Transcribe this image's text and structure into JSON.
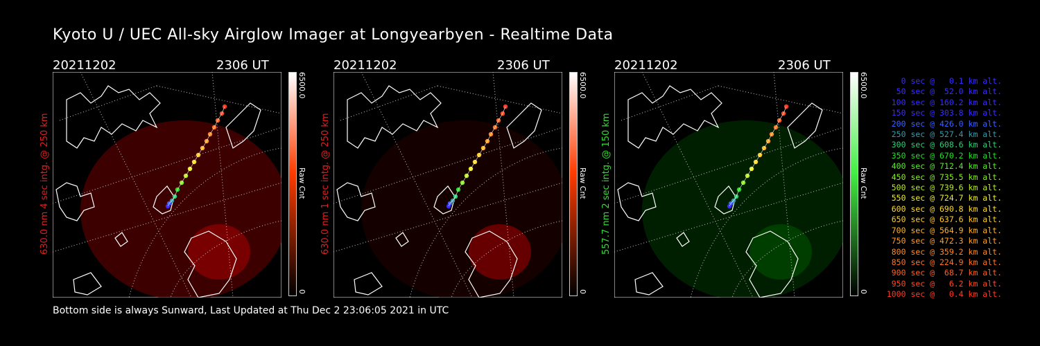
{
  "title": "Kyoto U / UEC All-sky Airglow Imager at Longyearbyen - Realtime Data",
  "footer": "Bottom side is always Sunward, Last Updated at Thu Dec  2 23:06:05 2021 in UTC",
  "panels": [
    {
      "date": "20211202",
      "time": "2306 UT",
      "side_label": "630.0 nm 4 sec intg. @ 250 km",
      "side_color": "#e02020",
      "cbar_max": "6500.0",
      "cbar_label": "Raw Cnt",
      "cbar_min": "0",
      "cbar_color": "#ff3b00"
    },
    {
      "date": "20211202",
      "time": "2306 UT",
      "side_label": "630.0 nm 1 sec intg. @ 250 km",
      "side_color": "#e02020",
      "cbar_max": "6500.0",
      "cbar_label": "Raw Cnt",
      "cbar_min": "0",
      "cbar_color": "#ff3b00"
    },
    {
      "date": "20211202",
      "time": "2306 UT",
      "side_label": "557.7 nm 2 sec intg. @ 150 km",
      "side_color": "#33dd33",
      "cbar_max": "6500.0",
      "cbar_label": "Raw Cnt",
      "cbar_min": "0",
      "cbar_color": "#44ee44"
    }
  ],
  "legend": [
    {
      "text": "0 sec @   0.1 km alt.",
      "color": "#3a2cff"
    },
    {
      "text": "50 sec @  52.0 km alt.",
      "color": "#3a2cff"
    },
    {
      "text": "100 sec @ 160.2 km alt.",
      "color": "#3a2cff"
    },
    {
      "text": "150 sec @ 303.8 km alt.",
      "color": "#3a2cff"
    },
    {
      "text": "200 sec @ 426.0 km alt.",
      "color": "#3a60ff"
    },
    {
      "text": "250 sec @ 527.4 km alt.",
      "color": "#3a9aa8"
    },
    {
      "text": "300 sec @ 608.6 km alt.",
      "color": "#2bd07a"
    },
    {
      "text": "350 sec @ 670.2 km alt.",
      "color": "#22e022"
    },
    {
      "text": "400 sec @ 712.4 km alt.",
      "color": "#55ee22"
    },
    {
      "text": "450 sec @ 735.5 km alt.",
      "color": "#88ee22"
    },
    {
      "text": "500 sec @ 739.6 km alt.",
      "color": "#bbee22"
    },
    {
      "text": "550 sec @ 724.7 km alt.",
      "color": "#eeee22"
    },
    {
      "text": "600 sec @ 690.8 km alt.",
      "color": "#ffdd22"
    },
    {
      "text": "650 sec @ 637.6 km alt.",
      "color": "#ffcc22"
    },
    {
      "text": "700 sec @ 564.9 km alt.",
      "color": "#ffb422"
    },
    {
      "text": "750 sec @ 472.3 km alt.",
      "color": "#ffa022"
    },
    {
      "text": "800 sec @ 359.2 km alt.",
      "color": "#ff8a22"
    },
    {
      "text": "850 sec @ 224.9 km alt.",
      "color": "#ff7422"
    },
    {
      "text": "900 sec @  68.7 km alt.",
      "color": "#ff6022"
    },
    {
      "text": "950 sec @   6.2 km alt.",
      "color": "#ff4a22"
    },
    {
      "text": "1000 sec @   0.4 km alt.",
      "color": "#ff3a22"
    }
  ]
}
